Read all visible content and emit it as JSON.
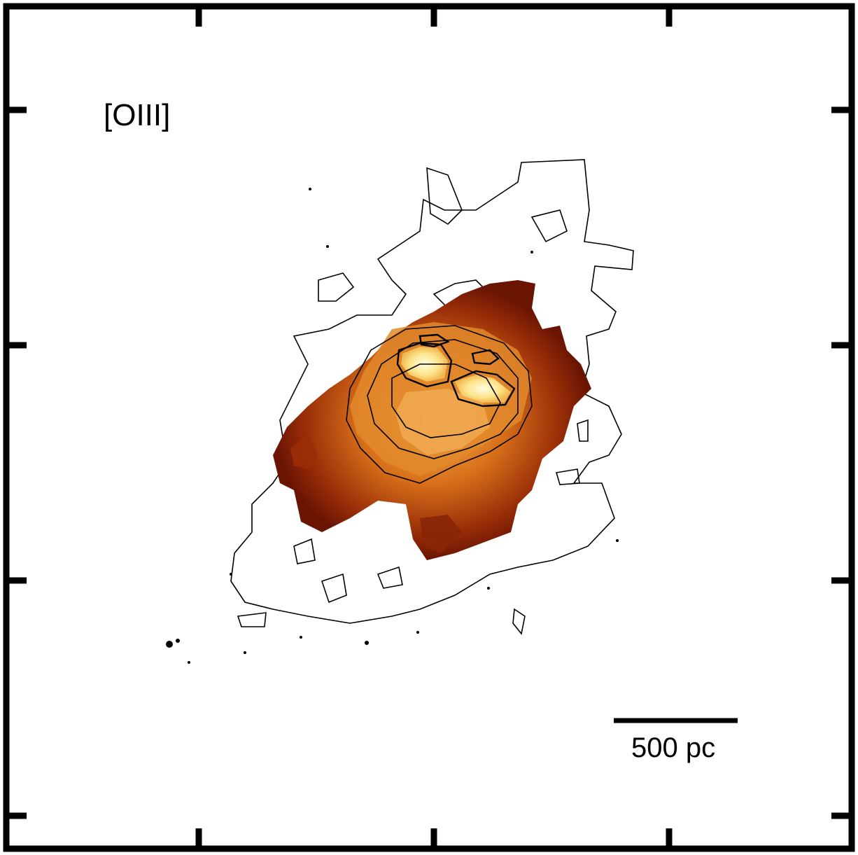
{
  "image": {
    "panel_label": "[OIII]",
    "scale_bar_label": "500 pc",
    "colors": {
      "frame": "#000000",
      "background": "#ffffff",
      "emission_low": "#7a1a05",
      "emission_mid": "#c75a10",
      "emission_high": "#f0a040",
      "emission_peak": "#fff0a8"
    }
  }
}
